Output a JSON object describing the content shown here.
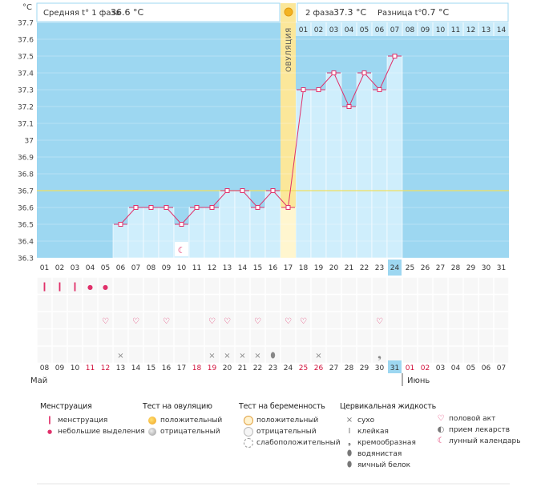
{
  "header": {
    "phase1_label": "Средняя t° 1 фаза",
    "phase1_value": "36.6 °C",
    "phase2_label": "2 фаза",
    "phase2_value": "37.3 °C",
    "diff_label": "Разница t°",
    "diff_value": "0.7 °C",
    "unit": "°C"
  },
  "ovulation_label": "ОВУЛЯЦИЯ",
  "month_left": "Май",
  "month_right": "Июнь",
  "chart_data": {
    "type": "line",
    "ylabel": "°C",
    "ylim": [
      36.3,
      37.7
    ],
    "yticks": [
      "36.3",
      "36.4",
      "36.5",
      "36.6",
      "36.7",
      "36.8",
      "36.9",
      "37",
      "37.1",
      "37.2",
      "37.3",
      "37.4",
      "37.5",
      "37.6",
      "37.7"
    ],
    "cycle_days": [
      "01",
      "02",
      "03",
      "04",
      "05",
      "06",
      "07",
      "08",
      "09",
      "10",
      "11",
      "12",
      "13",
      "14",
      "15",
      "16",
      "17",
      "18",
      "19",
      "20",
      "21",
      "22",
      "23",
      "24",
      "25",
      "26",
      "27",
      "28",
      "29",
      "30",
      "31"
    ],
    "temperatures": [
      null,
      null,
      null,
      null,
      null,
      36.5,
      36.6,
      36.6,
      36.6,
      36.5,
      36.6,
      36.6,
      36.7,
      36.7,
      36.6,
      36.7,
      36.6,
      37.3,
      37.3,
      37.4,
      37.2,
      37.4,
      37.3,
      37.5,
      null,
      null,
      null,
      null,
      null,
      null,
      null
    ],
    "coverline": 36.7,
    "ovulation_day_index": 16,
    "current_day_index": 23,
    "luteal_day_labels": [
      "01",
      "02",
      "03",
      "04",
      "05",
      "06",
      "07",
      "08",
      "09",
      "10",
      "11",
      "12",
      "13",
      "14"
    ],
    "dates": [
      "08",
      "09",
      "10",
      "11",
      "12",
      "13",
      "14",
      "15",
      "16",
      "17",
      "18",
      "19",
      "20",
      "21",
      "22",
      "23",
      "24",
      "25",
      "26",
      "27",
      "28",
      "29",
      "30",
      "31",
      "01",
      "02",
      "03",
      "04",
      "05",
      "06",
      "07"
    ],
    "date_colors": [
      "n",
      "n",
      "n",
      "r",
      "r",
      "n",
      "n",
      "n",
      "n",
      "n",
      "r",
      "r",
      "n",
      "n",
      "n",
      "n",
      "n",
      "r",
      "r",
      "n",
      "n",
      "n",
      "n",
      "n",
      "r",
      "r",
      "n",
      "n",
      "n",
      "n",
      "n"
    ],
    "current_date_index": 23,
    "menstruation": [
      "heavy",
      "heavy",
      "heavy",
      "light",
      "light",
      null,
      null,
      null,
      null,
      null,
      null,
      null,
      null,
      null,
      null,
      null,
      null,
      null,
      null,
      null,
      null,
      null,
      null,
      null,
      null,
      null,
      null,
      null,
      null,
      null,
      null
    ],
    "intercourse": [
      null,
      null,
      null,
      null,
      "heart",
      null,
      "heart",
      null,
      "heart",
      null,
      null,
      "heart",
      "heart",
      null,
      "heart",
      null,
      "heart",
      "heart",
      null,
      null,
      null,
      null,
      "heart",
      null,
      null,
      null,
      null,
      null,
      null,
      null,
      null
    ],
    "cervical_fluid": [
      null,
      null,
      null,
      null,
      null,
      "dry",
      null,
      null,
      null,
      null,
      null,
      "dry",
      "dry",
      "dry",
      "dry",
      "eggwhite",
      null,
      null,
      "dry",
      null,
      null,
      null,
      "creamy",
      null,
      null,
      null,
      null,
      null,
      null,
      null,
      null
    ],
    "lunar": [
      null,
      null,
      null,
      null,
      null,
      null,
      null,
      null,
      null,
      "moon",
      null,
      null,
      null,
      null,
      null,
      null,
      null,
      null,
      null,
      null,
      null,
      null,
      null,
      null,
      null,
      null,
      null,
      null,
      null,
      null,
      null
    ]
  },
  "legend": {
    "menstruation": {
      "title": "Менструация",
      "items": [
        "менструация",
        "небольшие выделения"
      ]
    },
    "ovulation_test": {
      "title": "Тест на овуляцию",
      "items": [
        "положительный",
        "отрицательный"
      ]
    },
    "pregnancy_test": {
      "title": "Тест на беременность",
      "items": [
        "положительный",
        "отрицательный",
        "слабоположительный"
      ]
    },
    "cervical": {
      "title": "Цервикальная жидкость",
      "items": [
        "сухо",
        "клейкая",
        "кремообразная",
        "водянистая",
        "яичный белок"
      ]
    },
    "other": {
      "items": [
        "половой акт",
        "прием лекарств",
        "лунный календарь"
      ]
    }
  },
  "colors": {
    "sky": "#9dd7f1",
    "bar": "#cfeefc",
    "line": "#e0306a",
    "ovulation": "#fbe79a",
    "coverline": "#f0e060"
  }
}
